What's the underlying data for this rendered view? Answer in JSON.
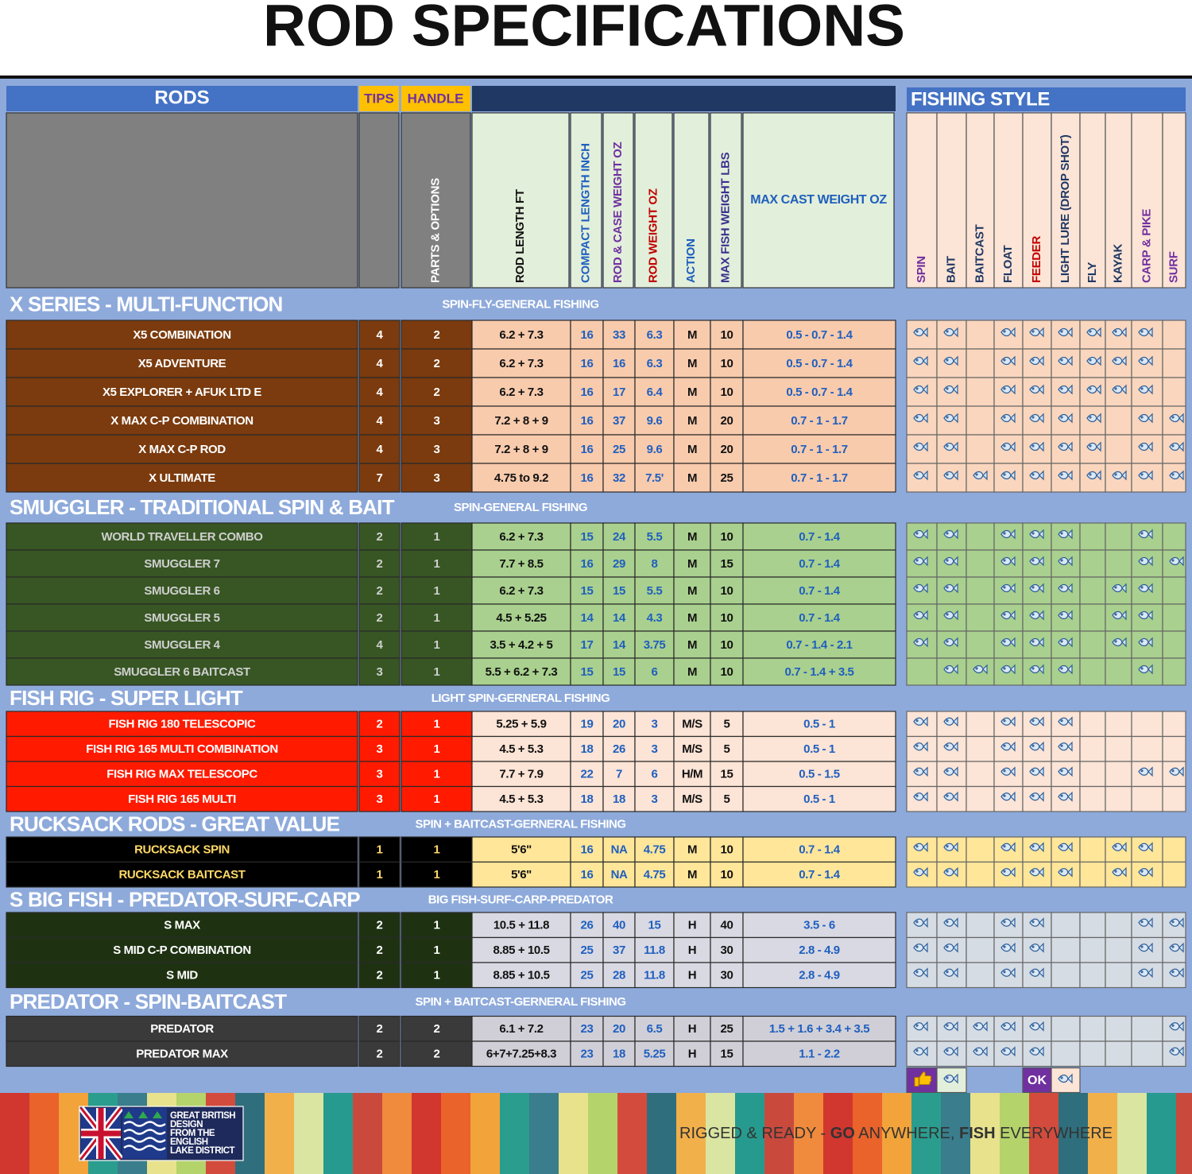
{
  "title": "ROD SPECIFICATIONS",
  "header": {
    "rods": "RODS",
    "tips": "TIPS",
    "handle": "HANDLE",
    "fishing_style": "FISHING STYLE"
  },
  "columns": [
    "PARTS & OPTIONS",
    "ROD LENGTH FT",
    "COMPACT LENGTH INCH",
    "ROD & CASE WEIGHT OZ",
    "ROD WEIGHT OZ",
    "ACTION",
    "MAX FISH WEIGHT LBS",
    "MAX CAST WEIGHT OZ"
  ],
  "styles": [
    "SPIN",
    "BAIT",
    "BAITCAST",
    "FLOAT",
    "FEEDER",
    "LIGHT LURE (DROP SHOT)",
    "FLY",
    "KAYAK",
    "CARP & PIKE",
    "SURF"
  ],
  "sections": [
    {
      "title": "X SERIES - MULTI-FUNCTION",
      "subtitle": "SPIN-FLY-GENERAL FISHING",
      "rows": [
        {
          "cells": [
            "X5 COMBINATION",
            "4",
            "2",
            "6.2 + 7.3",
            "16",
            "33",
            "6.3",
            "M",
            "10",
            "0.5 - 0.7 - 1.4"
          ],
          "styles": [
            1,
            1,
            0,
            1,
            1,
            1,
            1,
            1,
            1,
            0
          ]
        },
        {
          "cells": [
            "X5 ADVENTURE",
            "4",
            "2",
            "6.2 + 7.3",
            "16",
            "16",
            "6.3",
            "M",
            "10",
            "0.5 - 0.7 - 1.4"
          ],
          "styles": [
            1,
            1,
            0,
            1,
            1,
            1,
            1,
            1,
            1,
            0
          ]
        },
        {
          "cells": [
            "X5 EXPLORER + AFUK LTD E",
            "4",
            "2",
            "6.2 + 7.3",
            "16",
            "17",
            "6.4",
            "M",
            "10",
            "0.5 - 0.7 - 1.4"
          ],
          "styles": [
            1,
            1,
            0,
            1,
            1,
            1,
            1,
            1,
            1,
            0
          ]
        },
        {
          "cells": [
            "X MAX C-P COMBINATION",
            "4",
            "3",
            "7.2 + 8 + 9",
            "16",
            "37",
            "9.6",
            "M",
            "20",
            "0.7 - 1 - 1.7"
          ],
          "styles": [
            1,
            1,
            0,
            1,
            1,
            1,
            1,
            0,
            1,
            1
          ]
        },
        {
          "cells": [
            "X MAX C-P ROD",
            "4",
            "3",
            "7.2 + 8 + 9",
            "16",
            "25",
            "9.6",
            "M",
            "20",
            "0.7 - 1 - 1.7"
          ],
          "styles": [
            1,
            1,
            0,
            1,
            1,
            1,
            1,
            0,
            1,
            1
          ]
        },
        {
          "cells": [
            "X ULTIMATE",
            "7",
            "3",
            "4.75 to 9.2",
            "16",
            "32",
            "7.5'",
            "M",
            "25",
            "0.7 - 1 - 1.7"
          ],
          "styles": [
            1,
            1,
            1,
            1,
            1,
            1,
            1,
            1,
            1,
            1
          ]
        }
      ]
    },
    {
      "title": "SMUGGLER -  TRADITIONAL SPIN & BAIT",
      "subtitle": "SPIN-GENERAL FISHING",
      "rows": [
        {
          "cells": [
            "WORLD TRAVELLER COMBO",
            "2",
            "1",
            "6.2 + 7.3",
            "15",
            "24",
            "5.5",
            "M",
            "10",
            "0.7 - 1.4"
          ],
          "styles": [
            1,
            1,
            0,
            1,
            1,
            1,
            0,
            0,
            1,
            0
          ]
        },
        {
          "cells": [
            "SMUGGLER 7",
            "2",
            "1",
            "7.7 + 8.5",
            "16",
            "29",
            "8",
            "M",
            "15",
            "0.7 - 1.4"
          ],
          "styles": [
            1,
            1,
            0,
            1,
            1,
            1,
            0,
            0,
            1,
            1
          ]
        },
        {
          "cells": [
            "SMUGGLER 6",
            "2",
            "1",
            "6.2 + 7.3",
            "15",
            "15",
            "5.5",
            "M",
            "10",
            "0.7 - 1.4"
          ],
          "styles": [
            1,
            1,
            0,
            1,
            1,
            1,
            0,
            1,
            1,
            0
          ]
        },
        {
          "cells": [
            "SMUGGLER 5",
            "2",
            "1",
            "4.5 + 5.25",
            "14",
            "14",
            "4.3",
            "M",
            "10",
            "0.7 - 1.4"
          ],
          "styles": [
            1,
            1,
            0,
            1,
            1,
            1,
            0,
            1,
            1,
            0
          ]
        },
        {
          "cells": [
            "SMUGGLER 4",
            "4",
            "1",
            "3.5 + 4.2 + 5",
            "17",
            "14",
            "3.75",
            "M",
            "10",
            "0.7 - 1.4 - 2.1"
          ],
          "styles": [
            1,
            1,
            0,
            1,
            1,
            1,
            0,
            1,
            1,
            0
          ]
        },
        {
          "cells": [
            "SMUGGLER 6 BAITCAST",
            "3",
            "1",
            "5.5 + 6.2 + 7.3",
            "15",
            "15",
            "6",
            "M",
            "10",
            "0.7 - 1.4 + 3.5"
          ],
          "styles": [
            0,
            1,
            1,
            1,
            1,
            1,
            0,
            0,
            1,
            0
          ]
        }
      ]
    },
    {
      "title": "FISH RIG - SUPER LIGHT",
      "subtitle": "LIGHT SPIN-GERNERAL FISHING",
      "rows": [
        {
          "cells": [
            "FISH RIG 180 TELESCOPIC",
            "2",
            "1",
            "5.25 + 5.9",
            "19",
            "20",
            "3",
            "M/S",
            "5",
            "0.5 - 1"
          ],
          "styles": [
            1,
            1,
            0,
            1,
            1,
            1,
            0,
            0,
            0,
            0
          ]
        },
        {
          "cells": [
            "FISH RIG 165 MULTI COMBINATION",
            "3",
            "1",
            "4.5 + 5.3",
            "18",
            "26",
            "3",
            "M/S",
            "5",
            "0.5 - 1"
          ],
          "styles": [
            1,
            1,
            0,
            1,
            1,
            1,
            0,
            0,
            0,
            0
          ]
        },
        {
          "cells": [
            "FISH RIG MAX TELESCOPC",
            "3",
            "1",
            "7.7 + 7.9",
            "22",
            "7",
            "6",
            "H/M",
            "15",
            "0.5 - 1.5"
          ],
          "styles": [
            1,
            1,
            0,
            1,
            1,
            1,
            0,
            0,
            1,
            1
          ]
        },
        {
          "cells": [
            "FISH RIG 165 MULTI",
            "3",
            "1",
            "4.5 + 5.3",
            "18",
            "18",
            "3",
            "M/S",
            "5",
            "0.5 - 1"
          ],
          "styles": [
            1,
            1,
            0,
            1,
            1,
            1,
            0,
            0,
            0,
            0
          ]
        }
      ]
    },
    {
      "title": "RUCKSACK RODS  - GREAT VALUE",
      "subtitle": "SPIN + BAITCAST-GERNERAL FISHING",
      "rows": [
        {
          "cells": [
            "RUCKSACK SPIN",
            "1",
            "1",
            "5'6\"",
            "16",
            "NA",
            "4.75",
            "M",
            "10",
            "0.7 - 1.4"
          ],
          "styles": [
            1,
            1,
            0,
            1,
            1,
            1,
            0,
            1,
            1,
            0
          ]
        },
        {
          "cells": [
            "RUCKSACK BAITCAST",
            "1",
            "1",
            "5'6\"",
            "16",
            "NA",
            "4.75",
            "M",
            "10",
            "0.7 - 1.4"
          ],
          "styles": [
            1,
            1,
            0,
            1,
            1,
            1,
            0,
            1,
            1,
            0
          ]
        }
      ]
    },
    {
      "title": "S BIG FISH - PREDATOR-SURF-CARP",
      "subtitle": "BIG FISH-SURF-CARP-PREDATOR",
      "rows": [
        {
          "cells": [
            "S MAX",
            "2",
            "1",
            "10.5 + 11.8",
            "26",
            "40",
            "15",
            "H",
            "40",
            "3.5 - 6"
          ],
          "styles": [
            1,
            1,
            0,
            1,
            1,
            0,
            0,
            0,
            1,
            1
          ]
        },
        {
          "cells": [
            "S MID C-P COMBINATION",
            "2",
            "1",
            "8.85 + 10.5",
            "25",
            "37",
            "11.8",
            "H",
            "30",
            "2.8 - 4.9"
          ],
          "styles": [
            1,
            1,
            0,
            1,
            1,
            0,
            0,
            0,
            1,
            1
          ]
        },
        {
          "cells": [
            "S MID",
            "2",
            "1",
            "8.85 + 10.5",
            "25",
            "28",
            "11.8",
            "H",
            "30",
            "2.8 - 4.9"
          ],
          "styles": [
            1,
            1,
            0,
            1,
            1,
            0,
            0,
            0,
            1,
            1
          ]
        }
      ]
    },
    {
      "title": "PREDATOR - SPIN-BAITCAST",
      "subtitle": "SPIN + BAITCAST-GERNERAL FISHING",
      "rows": [
        {
          "cells": [
            "PREDATOR",
            "2",
            "2",
            "6.1 + 7.2",
            "23",
            "20",
            "6.5",
            "H",
            "25",
            "1.5 + 1.6 + 3.4 + 3.5"
          ],
          "styles": [
            1,
            1,
            1,
            1,
            1,
            0,
            0,
            0,
            0,
            1
          ]
        },
        {
          "cells": [
            "PREDATOR MAX",
            "2",
            "2",
            "6+7+7.25+8.3",
            "23",
            "18",
            "5.25",
            "H",
            "15",
            "1.1 - 2.2"
          ],
          "styles": [
            1,
            1,
            1,
            1,
            1,
            0,
            0,
            0,
            0,
            1
          ]
        }
      ]
    }
  ],
  "legend": {
    "ok": "OK"
  },
  "footer": {
    "badge": [
      "GREAT BRITISH",
      "DESIGN",
      "FROM THE",
      "ENGLISH",
      "LAKE DISTRICT"
    ],
    "tagline": [
      "RIGGED & READY - ",
      "GO",
      " ANYWHERE, ",
      "FISH",
      " EVERYWHERE"
    ]
  }
}
